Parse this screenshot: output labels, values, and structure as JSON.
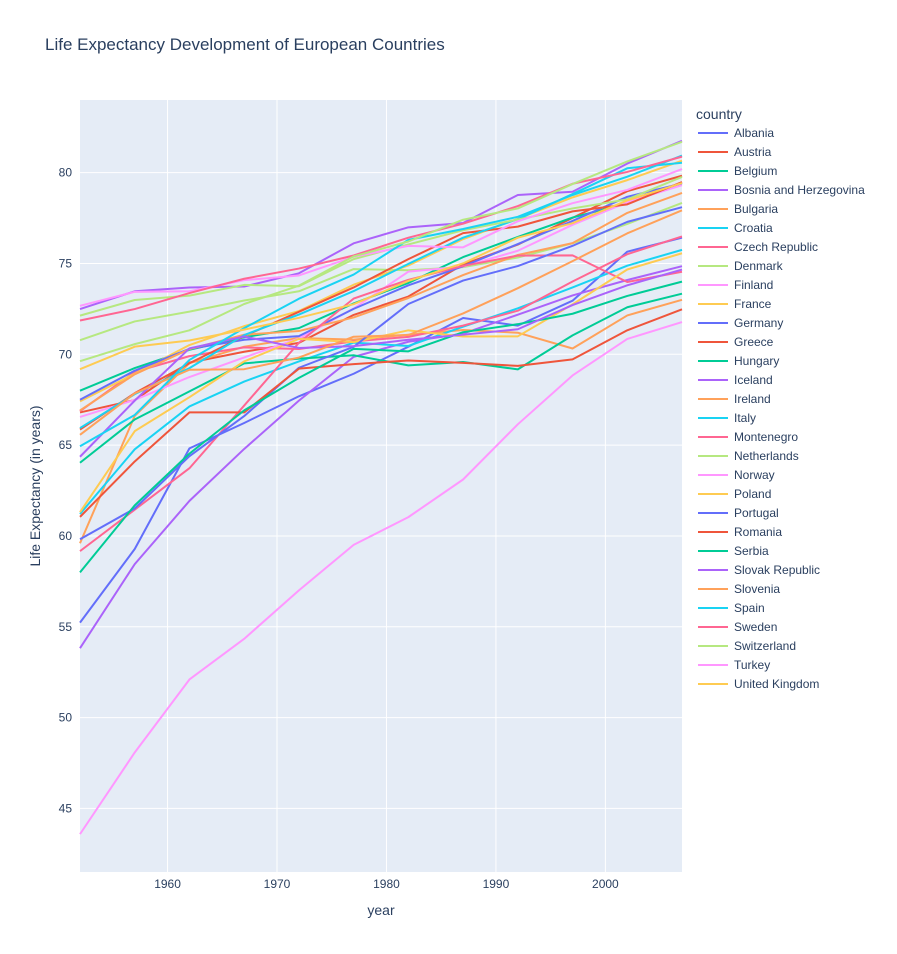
{
  "chart_data": {
    "type": "line",
    "title": "Life Expectancy Development of European Countries",
    "xlabel": "year",
    "ylabel": "Life Expectancy (in years)",
    "legend_title": "country",
    "legend_placement": "right",
    "grid": true,
    "xlim": [
      1952,
      2007
    ],
    "ylim": [
      41.5,
      84
    ],
    "x_ticks": [
      "1960",
      "1970",
      "1980",
      "1990",
      "2000"
    ],
    "y_ticks": [
      "45",
      "50",
      "55",
      "60",
      "65",
      "70",
      "75",
      "80"
    ],
    "x": [
      1952,
      1957,
      1962,
      1967,
      1972,
      1977,
      1982,
      1987,
      1992,
      1997,
      2002,
      2007
    ],
    "series": [
      {
        "name": "Albania",
        "color": "#636efa",
        "values": [
          55.23,
          59.28,
          64.82,
          66.22,
          67.69,
          68.93,
          70.42,
          72.0,
          71.58,
          72.95,
          75.65,
          76.42
        ]
      },
      {
        "name": "Austria",
        "color": "#EF553B",
        "values": [
          66.8,
          67.48,
          69.54,
          70.14,
          70.63,
          72.17,
          73.18,
          74.94,
          76.04,
          77.51,
          78.98,
          79.83
        ]
      },
      {
        "name": "Belgium",
        "color": "#00cc96",
        "values": [
          68.0,
          69.24,
          70.25,
          70.94,
          71.44,
          72.8,
          73.93,
          75.35,
          76.46,
          77.53,
          78.32,
          79.44
        ]
      },
      {
        "name": "Bosnia and Herzegovina",
        "color": "#ab63fa",
        "values": [
          53.82,
          58.45,
          61.93,
          64.79,
          67.45,
          69.86,
          70.69,
          71.14,
          72.18,
          73.24,
          74.09,
          74.85
        ]
      },
      {
        "name": "Bulgaria",
        "color": "#FFA15A",
        "values": [
          59.6,
          66.61,
          69.51,
          70.42,
          70.9,
          70.81,
          71.08,
          71.34,
          71.19,
          70.32,
          72.14,
          73.0
        ]
      },
      {
        "name": "Croatia",
        "color": "#19d3f3",
        "values": [
          61.21,
          64.77,
          67.13,
          68.5,
          69.61,
          70.64,
          70.46,
          71.52,
          72.53,
          73.68,
          74.88,
          75.75
        ]
      },
      {
        "name": "Czech Republic",
        "color": "#FF6692",
        "values": [
          66.87,
          69.03,
          69.9,
          70.38,
          70.29,
          70.71,
          70.96,
          71.58,
          72.4,
          74.01,
          75.51,
          76.49
        ]
      },
      {
        "name": "Denmark",
        "color": "#B6E880",
        "values": [
          70.78,
          71.81,
          72.35,
          72.96,
          73.47,
          74.69,
          74.63,
          74.8,
          75.33,
          76.11,
          77.18,
          78.33
        ]
      },
      {
        "name": "Finland",
        "color": "#FF97FF",
        "values": [
          66.55,
          67.49,
          68.75,
          69.83,
          70.87,
          72.52,
          74.55,
          74.83,
          75.7,
          77.13,
          78.37,
          79.31
        ]
      },
      {
        "name": "France",
        "color": "#FECB52",
        "values": [
          67.41,
          68.93,
          70.51,
          71.55,
          72.38,
          73.83,
          74.89,
          76.34,
          77.46,
          78.64,
          79.59,
          80.66
        ]
      },
      {
        "name": "Germany",
        "color": "#636efa",
        "values": [
          67.5,
          69.1,
          70.3,
          70.8,
          71.0,
          72.5,
          73.8,
          74.847,
          76.07,
          77.34,
          78.67,
          79.406
        ]
      },
      {
        "name": "Greece",
        "color": "#EF553B",
        "values": [
          65.86,
          67.86,
          69.51,
          71.0,
          72.34,
          73.68,
          75.24,
          76.67,
          77.03,
          77.869,
          78.256,
          79.483
        ]
      },
      {
        "name": "Hungary",
        "color": "#00cc96",
        "values": [
          64.03,
          66.41,
          67.96,
          69.5,
          69.76,
          69.95,
          69.39,
          69.58,
          69.17,
          71.04,
          72.59,
          73.338
        ]
      },
      {
        "name": "Iceland",
        "color": "#ab63fa",
        "values": [
          72.49,
          73.47,
          73.68,
          73.73,
          74.46,
          76.11,
          76.99,
          77.23,
          78.77,
          78.95,
          80.5,
          81.757
        ]
      },
      {
        "name": "Ireland",
        "color": "#FFA15A",
        "values": [
          66.91,
          68.9,
          70.29,
          71.08,
          71.28,
          72.03,
          73.1,
          74.36,
          75.467,
          76.122,
          77.783,
          78.885
        ]
      },
      {
        "name": "Italy",
        "color": "#19d3f3",
        "values": [
          65.94,
          67.81,
          69.24,
          71.06,
          72.19,
          73.48,
          74.98,
          76.42,
          77.44,
          78.82,
          80.24,
          80.546
        ]
      },
      {
        "name": "Montenegro",
        "color": "#FF6692",
        "values": [
          59.164,
          61.448,
          63.728,
          67.178,
          70.636,
          73.066,
          74.101,
          74.865,
          75.435,
          75.445,
          73.981,
          74.543
        ]
      },
      {
        "name": "Netherlands",
        "color": "#B6E880",
        "values": [
          72.13,
          72.99,
          73.23,
          73.82,
          73.75,
          75.24,
          76.05,
          76.83,
          77.42,
          78.03,
          78.53,
          79.762
        ]
      },
      {
        "name": "Norway",
        "color": "#FF97FF",
        "values": [
          72.67,
          73.44,
          73.47,
          74.08,
          74.34,
          75.37,
          75.97,
          75.89,
          77.32,
          78.32,
          79.05,
          80.196
        ]
      },
      {
        "name": "Poland",
        "color": "#FECB52",
        "values": [
          61.31,
          65.77,
          67.64,
          69.61,
          70.85,
          70.67,
          71.32,
          70.98,
          70.99,
          72.75,
          74.67,
          75.563
        ]
      },
      {
        "name": "Portugal",
        "color": "#636efa",
        "values": [
          59.82,
          61.51,
          64.39,
          66.6,
          69.26,
          70.41,
          72.77,
          74.06,
          74.86,
          75.97,
          77.29,
          78.098
        ]
      },
      {
        "name": "Romania",
        "color": "#EF553B",
        "values": [
          61.05,
          64.1,
          66.8,
          66.8,
          69.21,
          69.46,
          69.66,
          69.53,
          69.36,
          69.72,
          71.322,
          72.476
        ]
      },
      {
        "name": "Serbia",
        "color": "#00cc96",
        "values": [
          57.996,
          61.685,
          64.531,
          66.914,
          68.7,
          70.3,
          70.162,
          71.218,
          71.659,
          72.232,
          73.213,
          74.002
        ]
      },
      {
        "name": "Slovak Republic",
        "color": "#ab63fa",
        "values": [
          64.36,
          67.45,
          70.33,
          70.98,
          70.35,
          70.45,
          70.8,
          71.08,
          71.38,
          72.71,
          73.8,
          74.663
        ]
      },
      {
        "name": "Slovenia",
        "color": "#FFA15A",
        "values": [
          65.57,
          67.85,
          69.15,
          69.18,
          69.82,
          70.97,
          71.063,
          72.25,
          73.64,
          75.13,
          76.66,
          77.926
        ]
      },
      {
        "name": "Spain",
        "color": "#19d3f3",
        "values": [
          64.94,
          66.66,
          69.69,
          71.44,
          73.06,
          74.39,
          76.3,
          76.9,
          77.57,
          78.77,
          79.78,
          80.941
        ]
      },
      {
        "name": "Sweden",
        "color": "#FF6692",
        "values": [
          71.86,
          72.49,
          73.37,
          74.16,
          74.72,
          75.44,
          76.42,
          77.19,
          78.16,
          79.39,
          80.04,
          80.884
        ]
      },
      {
        "name": "Switzerland",
        "color": "#B6E880",
        "values": [
          69.62,
          70.56,
          71.32,
          72.77,
          73.78,
          75.39,
          76.21,
          77.41,
          78.03,
          79.37,
          80.62,
          81.701
        ]
      },
      {
        "name": "Turkey",
        "color": "#FF97FF",
        "values": [
          43.585,
          48.079,
          52.098,
          54.336,
          57.005,
          59.507,
          61.036,
          63.108,
          66.146,
          68.835,
          70.845,
          71.777
        ]
      },
      {
        "name": "United Kingdom",
        "color": "#FECB52",
        "values": [
          69.18,
          70.42,
          70.76,
          71.36,
          72.01,
          72.76,
          74.04,
          75.007,
          76.42,
          77.218,
          78.471,
          79.425
        ]
      }
    ]
  }
}
